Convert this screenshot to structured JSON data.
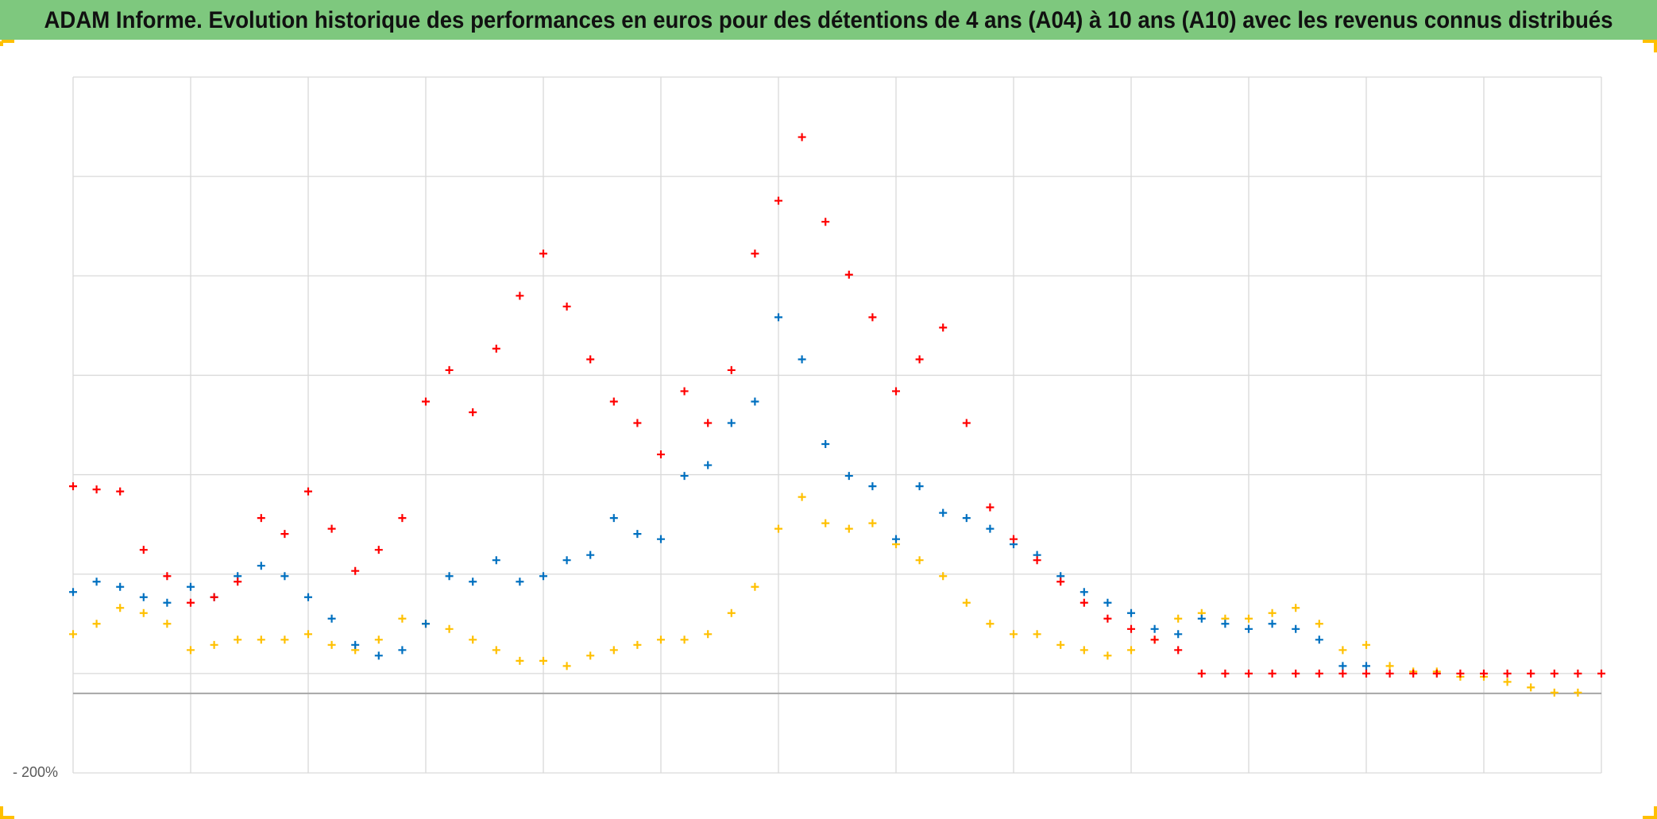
{
  "chart_data": {
    "type": "scatter",
    "title": "ADAM Informe. Evolution historique des performances en euros pour des détentions de 4 ans (A04) à 10 ans (A10) avec les revenus connus distribués",
    "xlim": [
      0,
      13
    ],
    "xticks": [
      {
        "value": 0,
        "label": null
      },
      {
        "value": 1,
        "label": null
      },
      {
        "value": 2,
        "label": null
      },
      {
        "value": 3,
        "label": null
      },
      {
        "value": 4,
        "label": null
      },
      {
        "value": 5,
        "label": null
      },
      {
        "value": 6,
        "label": null
      },
      {
        "value": 7,
        "label": null
      },
      {
        "value": 8,
        "label": null
      },
      {
        "value": 9,
        "label": null
      },
      {
        "value": 10,
        "label": null
      },
      {
        "value": 11,
        "label": null
      },
      {
        "value": 12,
        "label": null
      },
      {
        "value": 13,
        "label": null
      }
    ],
    "ylim": [
      -200,
      1550
    ],
    "yticks": [
      {
        "value": -200,
        "label": "- 200%"
      },
      {
        "value": 50,
        "label": null
      },
      {
        "value": 300,
        "label": null
      },
      {
        "value": 550,
        "label": null
      },
      {
        "value": 800,
        "label": null
      },
      {
        "value": 1050,
        "label": null
      },
      {
        "value": 1300,
        "label": null
      },
      {
        "value": 1550,
        "label": null
      }
    ],
    "x_axis_crossing": 0,
    "grid": true,
    "marker": "+",
    "series": [
      {
        "color": "#ffc000",
        "x": [
          0,
          0.2,
          0.4,
          0.6,
          0.8,
          1,
          1.2,
          1.4,
          1.6,
          1.8,
          2,
          2.2,
          2.4,
          2.6,
          2.8,
          3,
          3.2,
          3.4,
          3.6,
          3.8,
          4,
          4.2,
          4.4,
          4.6,
          4.8,
          5,
          5.2,
          5.4,
          5.6,
          5.8,
          6,
          6.2,
          6.4,
          6.6,
          6.8,
          7,
          7.2,
          7.4,
          7.6,
          7.8,
          8,
          8.2,
          8.4,
          8.6,
          8.8,
          9,
          9.2,
          9.4,
          9.6,
          9.8,
          10,
          10.2,
          10.4,
          10.6,
          10.8,
          11,
          11.2,
          11.4,
          11.6,
          11.8,
          12,
          12.2,
          12.4,
          12.6,
          12.8
        ],
        "values": [
          149,
          175,
          215,
          202,
          175,
          109,
          122,
          135,
          135,
          135,
          149,
          122,
          109,
          135,
          188,
          175,
          162,
          135,
          109,
          82,
          82,
          69,
          95,
          109,
          122,
          135,
          135,
          149,
          202,
          268,
          414,
          494,
          428,
          414,
          428,
          375,
          335,
          295,
          228,
          175,
          149,
          149,
          122,
          109,
          95,
          109,
          135,
          188,
          202,
          188,
          188,
          202,
          215,
          175,
          109,
          122,
          69,
          55,
          55,
          42,
          42,
          29,
          15,
          2,
          2
        ]
      },
      {
        "color": "#0070c0",
        "x": [
          0,
          0.2,
          0.4,
          0.6,
          0.8,
          1,
          1.2,
          1.4,
          1.6,
          1.8,
          2,
          2.2,
          2.4,
          2.6,
          2.8,
          3,
          3.2,
          3.4,
          3.6,
          3.8,
          4,
          4.2,
          4.4,
          4.6,
          4.8,
          5,
          5.2,
          5.4,
          5.6,
          5.8,
          6,
          6.2,
          6.4,
          6.6,
          6.8,
          7,
          7.2,
          7.4,
          7.6,
          7.8,
          8,
          8.2,
          8.4,
          8.6,
          8.8,
          9,
          9.2,
          9.4,
          9.6,
          9.8,
          10,
          10.2,
          10.4,
          10.6,
          10.8,
          11
        ],
        "values": [
          255,
          281,
          268,
          242,
          228,
          268,
          242,
          295,
          321,
          295,
          242,
          188,
          122,
          95,
          109,
          175,
          295,
          281,
          335,
          281,
          295,
          335,
          348,
          441,
          401,
          388,
          547,
          574,
          680,
          734,
          946,
          840,
          627,
          547,
          521,
          388,
          521,
          454,
          441,
          414,
          375,
          348,
          295,
          255,
          228,
          202,
          162,
          149,
          188,
          175,
          162,
          175,
          162,
          135,
          69,
          69
        ]
      },
      {
        "color": "#ff0000",
        "x": [
          0,
          0.2,
          0.4,
          0.6,
          0.8,
          1,
          1.2,
          1.4,
          1.6,
          1.8,
          2,
          2.2,
          2.4,
          2.6,
          2.8,
          3,
          3.2,
          3.4,
          3.6,
          3.8,
          4,
          4.2,
          4.4,
          4.6,
          4.8,
          5,
          5.2,
          5.4,
          5.6,
          5.8,
          6,
          6.2,
          6.4,
          6.6,
          6.8,
          7,
          7.2,
          7.4,
          7.6,
          7.8,
          8,
          8.2,
          8.4,
          8.6,
          8.8,
          9,
          9.2,
          9.4,
          9.6,
          9.8,
          10,
          10.2,
          10.4,
          10.6,
          10.8,
          11,
          11.2,
          11.4,
          11.6,
          11.8,
          12,
          12.2,
          12.4,
          12.6,
          12.8,
          13
        ],
        "values": [
          521,
          513,
          508,
          361,
          295,
          228,
          242,
          281,
          441,
          401,
          508,
          414,
          308,
          361,
          441,
          734,
          813,
          707,
          867,
          1000,
          1106,
          973,
          840,
          734,
          680,
          601,
          760,
          680,
          813,
          1106,
          1239,
          1399,
          1186,
          1053,
          946,
          760,
          840,
          920,
          680,
          468,
          388,
          335,
          281,
          228,
          188,
          162,
          135,
          109,
          50,
          50,
          50,
          50,
          50,
          50,
          50,
          50,
          50,
          50,
          50,
          50,
          50,
          50,
          50,
          50,
          50,
          50
        ]
      }
    ]
  }
}
